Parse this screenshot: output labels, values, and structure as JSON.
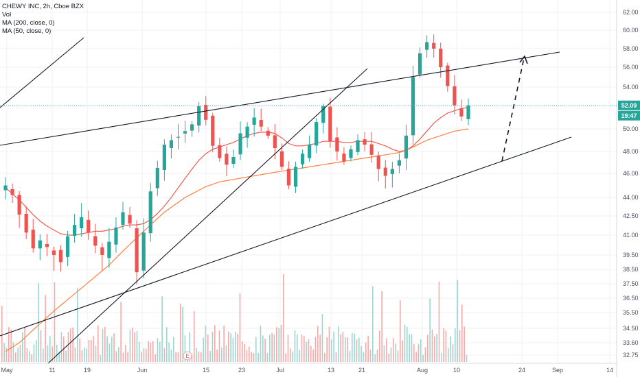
{
  "legend": {
    "symbol_line": "CHEWY INC, 2h, Cboe BZX",
    "vol_label": "Vol",
    "ma200_label": "MA (200, close, 0)",
    "ma50_label": "MA (50, close, 0)"
  },
  "colors": {
    "up": "#26a69a",
    "down": "#ef5350",
    "ma_red": "#f05a4f",
    "ma_orange": "#ff7f3f",
    "price_line": "#55bcbc",
    "badge_price": "#26a69a",
    "badge_time": "#26a69a",
    "trendline": "#131722"
  },
  "chart_data": {
    "type": "candlestick",
    "title": "CHEWY INC, 2h, Cboe BZX",
    "y_axis": {
      "ticks": [
        32.75,
        33.6,
        34.5,
        35.5,
        36.5,
        37.5,
        38.5,
        39.5,
        41.0,
        42.5,
        44.0,
        46.0,
        48.0,
        50.0,
        52.0,
        54.0,
        56.0,
        58.0,
        60.0,
        62.0
      ],
      "tick_labels": [
        "32.75",
        "33.60",
        "34.50",
        "35.50",
        "36.50",
        "37.50",
        "38.50",
        "39.50",
        "41.00",
        "42.50",
        "44.00",
        "46.00",
        "48.00",
        "50.00",
        "52.00",
        "54.00",
        "56.00",
        "58.00",
        "60.00",
        "62.00"
      ]
    },
    "x_axis": {
      "tick_labels": [
        "May",
        "11",
        "19",
        "Jun",
        "15",
        "23",
        "Jul",
        "13",
        "21",
        "Aug",
        "10",
        "24",
        "Sep",
        "14"
      ]
    },
    "current_price": {
      "value": 52.09,
      "label": "52.09"
    },
    "countdown_label": "19:47",
    "close_series": [
      45.0,
      44.2,
      42.6,
      41.2,
      40.0,
      40.6,
      40.1,
      39.5,
      39.0,
      40.9,
      41.8,
      42.4,
      41.2,
      40.2,
      39.5,
      40.5,
      41.6,
      42.8,
      41.9,
      38.3,
      41.2,
      44.5,
      46.5,
      48.6,
      49.0,
      49.3,
      49.8,
      50.4,
      52.0,
      50.8,
      48.5,
      47.4,
      46.8,
      47.5,
      49.6,
      50.2,
      51.0,
      50.2,
      49.4,
      48.3,
      46.6,
      45.0,
      46.6,
      47.8,
      48.6,
      50.6,
      52.0,
      48.9,
      48.0,
      47.1,
      48.2,
      49.0,
      48.6,
      47.7,
      46.4,
      45.8,
      46.4,
      47.2,
      49.4,
      55.0,
      57.5,
      58.7,
      58.0,
      56.0,
      54.1,
      52.1,
      51.1,
      52.09
    ],
    "ma50_series": [
      44.8,
      44.3,
      43.8,
      43.2,
      42.6,
      42.1,
      41.7,
      41.4,
      41.1,
      41.0,
      41.0,
      41.1,
      41.2,
      41.3,
      41.3,
      41.4,
      41.5,
      41.7,
      41.8,
      41.8,
      41.9,
      42.2,
      42.7,
      43.3,
      44.0,
      44.8,
      45.6,
      46.4,
      47.2,
      47.8,
      48.2,
      48.4,
      48.6,
      48.8,
      49.1,
      49.4,
      49.6,
      49.7,
      49.7,
      49.6,
      49.2,
      48.7,
      48.5,
      48.5,
      48.6,
      48.7,
      48.9,
      48.9,
      48.9,
      48.8,
      48.8,
      48.9,
      48.9,
      48.9,
      48.7,
      48.5,
      48.2,
      48.0,
      48.1,
      48.5,
      49.1,
      49.8,
      50.5,
      51.0,
      51.4,
      51.6,
      51.8,
      51.9
    ],
    "ma200_series": [
      33.0,
      33.3,
      33.6,
      34.0,
      34.4,
      34.8,
      35.2,
      35.6,
      36.0,
      36.4,
      36.8,
      37.2,
      37.6,
      38.0,
      38.4,
      38.8,
      39.3,
      39.8,
      40.3,
      40.8,
      41.3,
      41.8,
      42.3,
      42.8,
      43.2,
      43.6,
      44.0,
      44.3,
      44.6,
      44.9,
      45.1,
      45.3,
      45.4,
      45.5,
      45.6,
      45.7,
      45.8,
      45.9,
      46.0,
      46.1,
      46.2,
      46.3,
      46.4,
      46.5,
      46.6,
      46.7,
      46.8,
      46.9,
      47.0,
      47.1,
      47.2,
      47.3,
      47.4,
      47.5,
      47.6,
      47.7,
      47.8,
      47.9,
      48.1,
      48.4,
      48.7,
      49.0,
      49.2,
      49.4,
      49.6,
      49.8,
      49.9,
      50.0
    ],
    "annotation_marker": "E"
  }
}
